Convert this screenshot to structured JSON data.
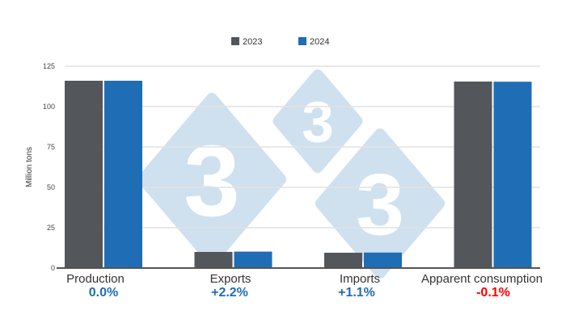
{
  "chart_data": {
    "type": "bar",
    "title": "",
    "xlabel": "",
    "ylabel": "Million tons",
    "ylim": [
      0,
      125
    ],
    "yticks": [
      0,
      25,
      50,
      75,
      100,
      125
    ],
    "grid": true,
    "legend_position": "top",
    "categories": [
      "Production",
      "Exports",
      "Imports",
      "Apparent consumption"
    ],
    "changes": [
      {
        "text": "0.0%",
        "color": "#1f6db5"
      },
      {
        "text": "+2.2%",
        "color": "#1f6db5"
      },
      {
        "text": "+1.1%",
        "color": "#1f6db5"
      },
      {
        "text": "-0.1%",
        "color": "#ff0000"
      }
    ],
    "series": [
      {
        "name": "2023",
        "color": "#53565a",
        "values": [
          116,
          10,
          9.5,
          115.5
        ]
      },
      {
        "name": "2024",
        "color": "#1f6db5",
        "values": [
          116,
          10.2,
          9.6,
          115.4
        ]
      }
    ],
    "watermark": {
      "text": "3",
      "color": "#cfe0ef"
    }
  }
}
